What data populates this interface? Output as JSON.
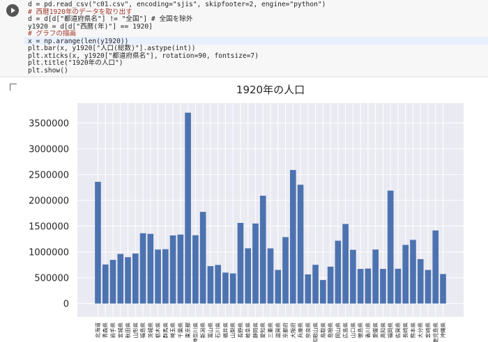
{
  "code": {
    "lines": [
      "d = pd.read_csv(\"c01.csv\", encoding=\"sjis\", skipfooter=2, engine=\"python\")",
      "# 西暦1920年のデータを取り出す",
      "d = d[d[\"都道府県名\"] != \"全国\"] # 全国を除外",
      "y1920 = d[d[\"西暦(年)\"] == 1920]",
      "# グラフの描画",
      "x = np.arange(len(y1920))",
      "plt.bar(x, y1920[\"人口(総数)\"].astype(int))",
      "plt.xticks(x, y1920[\"都道府県名\"], rotation=90, fontsize=7)",
      "plt.title(\"1920年の人口\")",
      "plt.show()"
    ]
  },
  "chart_data": {
    "type": "bar",
    "title": "1920年の人口",
    "color": "#4c72b0",
    "grid": true,
    "categories": [
      "北海道",
      "青森県",
      "岩手県",
      "宮城県",
      "秋田県",
      "山形県",
      "福島県",
      "茨城県",
      "栃木県",
      "群馬県",
      "埼玉県",
      "千葉県",
      "東京都",
      "神奈川県",
      "新潟県",
      "富山県",
      "石川県",
      "福井県",
      "山梨県",
      "長野県",
      "岐阜県",
      "静岡県",
      "愛知県",
      "三重県",
      "滋賀県",
      "京都府",
      "大阪府",
      "兵庫県",
      "奈良県",
      "和歌山県",
      "鳥取県",
      "島根県",
      "岡山県",
      "広島県",
      "山口県",
      "徳島県",
      "香川県",
      "愛媛県",
      "高知県",
      "福岡県",
      "佐賀県",
      "長崎県",
      "熊本県",
      "大分県",
      "宮崎県",
      "鹿児島県",
      "沖縄県"
    ],
    "values": [
      2359183,
      756454,
      845540,
      961768,
      898537,
      968925,
      1362750,
      1350400,
      1046479,
      1052610,
      1319533,
      1336155,
      3699428,
      1323390,
      1776474,
      724276,
      747360,
      599155,
      583453,
      1562722,
      1070407,
      1550387,
      2089762,
      1069270,
      651050,
      1287147,
      2587847,
      2301799,
      564607,
      750411,
      454675,
      714712,
      1217698,
      1541905,
      1041013,
      670212,
      677852,
      1046720,
      670895,
      2188249,
      673895,
      1136182,
      1233233,
      860282,
      651097,
      1415582,
      571572
    ],
    "ylim": [
      -260000,
      3885000
    ],
    "yticks": [
      0,
      500000,
      1000000,
      1500000,
      2000000,
      2500000,
      3000000,
      3500000
    ]
  }
}
